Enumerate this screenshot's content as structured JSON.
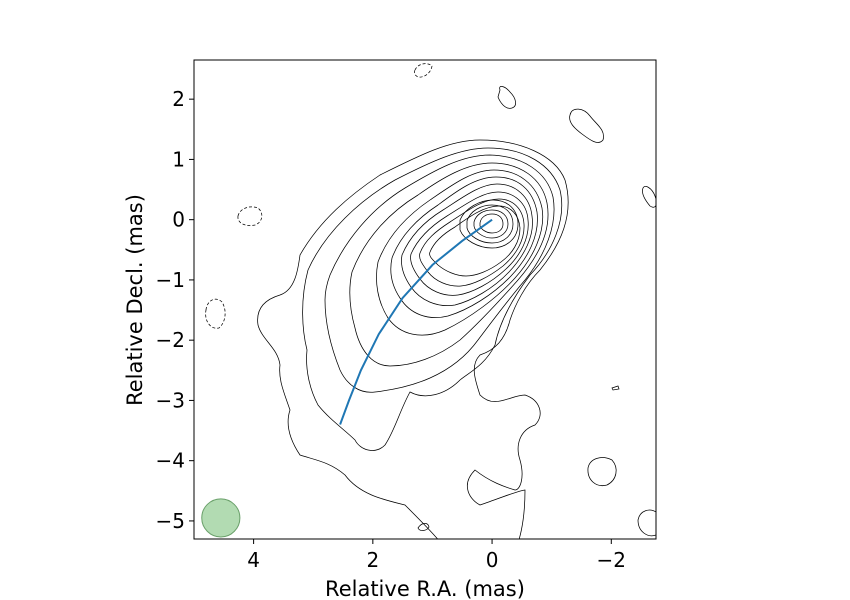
{
  "chart_data": {
    "type": "contour",
    "title": "",
    "xlabel": "Relative R.A. (mas)",
    "ylabel": "Relative Decl. (mas)",
    "xlim": [
      5.0,
      -2.75
    ],
    "ylim": [
      -5.3,
      2.65
    ],
    "x_inverted": true,
    "xticks": [
      4,
      2,
      0,
      -2
    ],
    "xtick_labels": [
      "4",
      "2",
      "0",
      "−2"
    ],
    "yticks": [
      2,
      1,
      0,
      -1,
      -2,
      -3,
      -4,
      -5
    ],
    "ytick_labels": [
      "2",
      "1",
      "0",
      "−1",
      "−2",
      "−3",
      "−4",
      "−5"
    ],
    "grid": false,
    "jet_ridge_line": {
      "color": "#1f77b4",
      "x": [
        0.0,
        0.5,
        1.0,
        1.5,
        1.9,
        2.2,
        2.4,
        2.55
      ],
      "y": [
        0.0,
        -0.35,
        -0.75,
        -1.3,
        -1.9,
        -2.5,
        -3.0,
        -3.4
      ]
    },
    "beam": {
      "center_x": 4.55,
      "center_y": -4.95,
      "radius_mas": 0.32,
      "fill": "#98cf98",
      "edge": "#6aa06a"
    },
    "core": {
      "x": 0.0,
      "y": 0.0
    },
    "contour_color": "#000000"
  }
}
